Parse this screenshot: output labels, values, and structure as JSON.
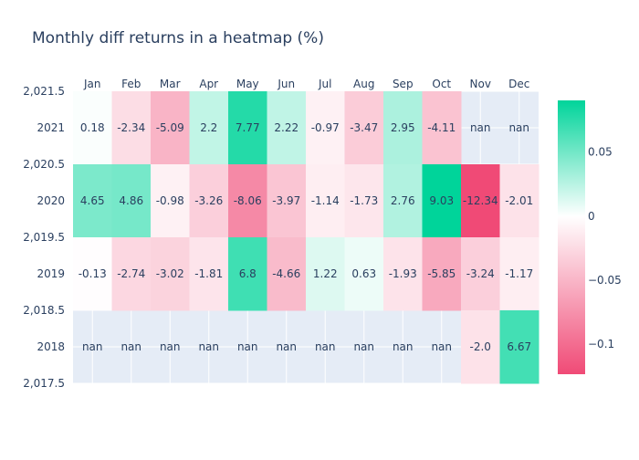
{
  "chart_data": {
    "type": "heatmap",
    "title": "Monthly diff returns in a heatmap (%)",
    "xlabel": "",
    "ylabel": "",
    "columns": [
      "Jan",
      "Feb",
      "Mar",
      "Apr",
      "May",
      "Jun",
      "Jul",
      "Aug",
      "Sep",
      "Oct",
      "Nov",
      "Dec"
    ],
    "rows": [
      "2021",
      "2020",
      "2019",
      "2018"
    ],
    "y_values": [
      2021,
      2020,
      2019,
      2018
    ],
    "ylim": [
      2017.5,
      2021.5
    ],
    "y_tick_labels": [
      "2,021.5",
      "2021",
      "2,020.5",
      "2020",
      "2,019.5",
      "2019",
      "2,018.5",
      "2018",
      "2,017.5"
    ],
    "values": [
      [
        0.18,
        -2.34,
        -5.09,
        2.2,
        7.77,
        2.22,
        -0.97,
        -3.47,
        2.95,
        -4.11,
        null,
        null
      ],
      [
        4.65,
        4.86,
        -0.98,
        -3.26,
        -8.06,
        -3.97,
        -1.14,
        -1.73,
        2.76,
        9.03,
        -12.34,
        -2.01
      ],
      [
        -0.13,
        -2.74,
        -3.02,
        -1.81,
        6.8,
        -4.66,
        1.22,
        0.63,
        -1.93,
        -5.85,
        -3.24,
        -1.17
      ],
      [
        null,
        null,
        null,
        null,
        null,
        null,
        null,
        null,
        null,
        null,
        -2.0,
        6.67
      ]
    ],
    "cell_labels": [
      [
        "0.18",
        "-2.34",
        "-5.09",
        "2.2",
        "7.77",
        "2.22",
        "-0.97",
        "-3.47",
        "2.95",
        "-4.11",
        "nan",
        "nan"
      ],
      [
        "4.65",
        "4.86",
        "-0.98",
        "-3.26",
        "-8.06",
        "-3.97",
        "-1.14",
        "-1.73",
        "2.76",
        "9.03",
        "-12.34",
        "-2.01"
      ],
      [
        "-0.13",
        "-2.74",
        "-3.02",
        "-1.81",
        "6.8",
        "-4.66",
        "1.22",
        "0.63",
        "-1.93",
        "-5.85",
        "-3.24",
        "-1.17"
      ],
      [
        "nan",
        "nan",
        "nan",
        "nan",
        "nan",
        "nan",
        "nan",
        "nan",
        "nan",
        "nan",
        "-2.0",
        "6.67"
      ]
    ],
    "colorscale": {
      "min": -0.1234,
      "max": 0.0903,
      "mid": 0,
      "low_color": "#f04a76",
      "mid_color": "#ffffff",
      "high_color": "#00d49a",
      "nan_color": "#e5ecf6",
      "tick_values": [
        0.05,
        0,
        -0.05,
        -0.1
      ],
      "tick_labels": [
        "0.05",
        "0",
        "−0.05",
        "−0.1"
      ]
    },
    "grid": true,
    "colorbar_position": "right"
  }
}
